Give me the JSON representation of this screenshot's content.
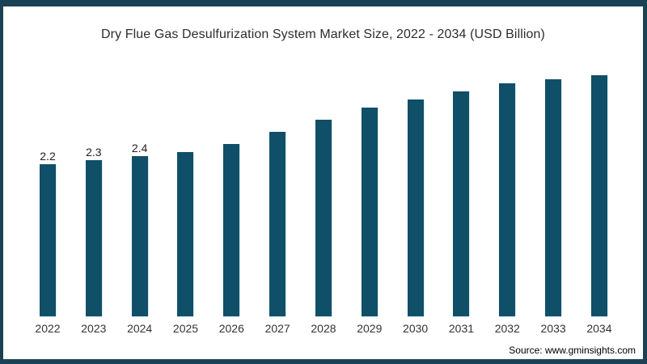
{
  "frame": {
    "border_color": "#1b4254",
    "background_color": "#ffffff"
  },
  "chart_data": {
    "type": "bar",
    "title": "Dry Flue Gas Desulfurization System Market Size, 2022 - 2034 (USD Billion)",
    "categories": [
      "2022",
      "2023",
      "2024",
      "2025",
      "2026",
      "2027",
      "2028",
      "2029",
      "2030",
      "2031",
      "2032",
      "2033",
      "2034"
    ],
    "values": [
      2.2,
      2.3,
      2.4,
      2.5,
      2.7,
      3.0,
      3.3,
      3.6,
      3.8,
      4.0,
      4.2,
      4.3,
      4.4
    ],
    "data_labels": [
      "2.2",
      "2.3",
      "2.4",
      "",
      "",
      "",
      "",
      "",
      "",
      "",
      "",
      "",
      ""
    ],
    "xlabel": "",
    "ylabel": "",
    "ylim": [
      -1.56,
      4.44
    ],
    "grid": false,
    "legend": false,
    "axes_hidden": true,
    "bar_color": "#104f68"
  },
  "source": {
    "label": "Source: www.gminsights.com"
  }
}
